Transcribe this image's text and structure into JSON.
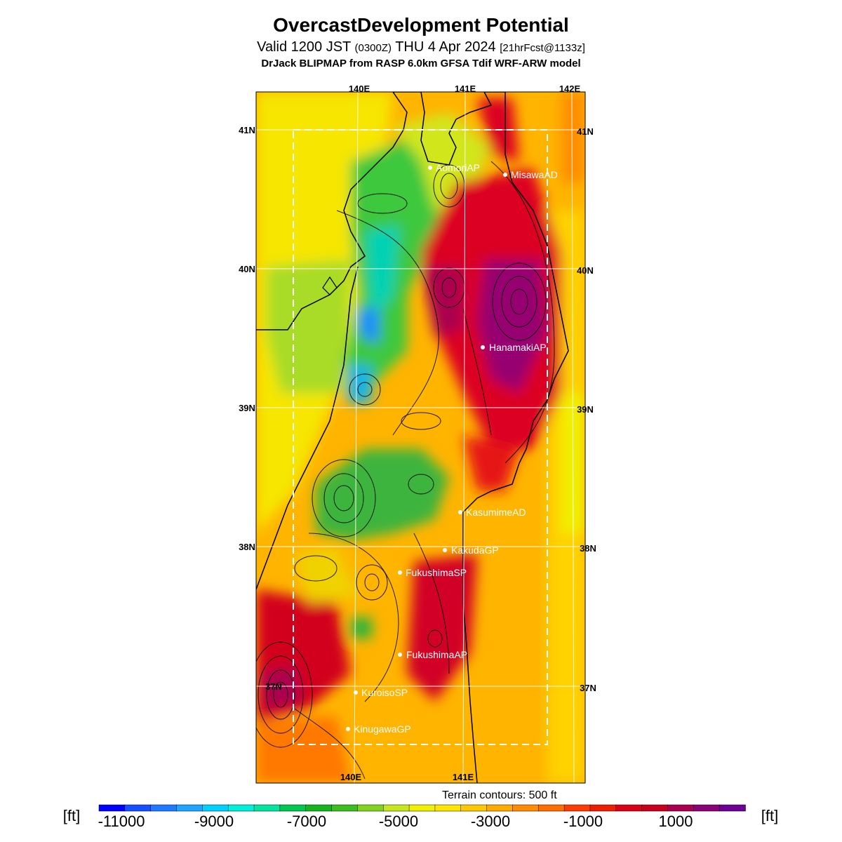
{
  "header": {
    "title": "OvercastDevelopment Potential",
    "valid_prefix": "Valid 1200 JST",
    "valid_utc": "(0300Z)",
    "valid_date": "THU 4 Apr 2024",
    "forecast": "[21hrFcst@1133z]",
    "model_line": "DrJack BLIPMAP from RASP 6.0km GFSA Tdif WRF-ARW model"
  },
  "map": {
    "lon_labels": [
      "140E",
      "141E",
      "142E"
    ],
    "lat_labels": [
      "41N",
      "40N",
      "39N",
      "38N",
      "37N"
    ],
    "sites": [
      {
        "name": "AomoriAP"
      },
      {
        "name": "MisawaAD"
      },
      {
        "name": "HanamakiAP"
      },
      {
        "name": "KasumimeAD"
      },
      {
        "name": "KakudaGP"
      },
      {
        "name": "FukushimaSP"
      },
      {
        "name": "FukushimaAP"
      },
      {
        "name": "KuroisoSP"
      },
      {
        "name": "KinugawaGP"
      }
    ],
    "terrain_note": "Terrain contours: 500 ft"
  },
  "colorbar": {
    "unit": "[ft]",
    "labels": [
      "-11000",
      "-9000",
      "-7000",
      "-5000",
      "-3000",
      "-1000",
      "1000"
    ],
    "colors": [
      "#0000ff",
      "#1450ff",
      "#1e7bff",
      "#1ea5ff",
      "#00d2ff",
      "#00f0dc",
      "#00e6a0",
      "#00c850",
      "#14b41e",
      "#3cbe1e",
      "#82d21e",
      "#c8e61e",
      "#f0f000",
      "#ffe600",
      "#ffc800",
      "#ffaa00",
      "#ff8c00",
      "#ff6e00",
      "#ff3c00",
      "#f01e00",
      "#dc0014",
      "#c8001e",
      "#aa0050",
      "#8c0078",
      "#6e0096"
    ]
  }
}
